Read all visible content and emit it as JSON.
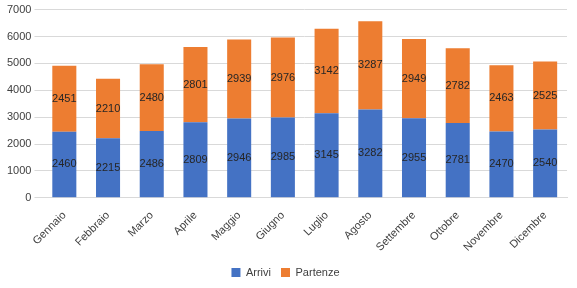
{
  "chart_data": {
    "type": "bar",
    "stacked": true,
    "categories": [
      "Gennaio",
      "Febbraio",
      "Marzo",
      "Aprile",
      "Maggio",
      "Giugno",
      "Luglio",
      "Agosto",
      "Settembre",
      "Ottobre",
      "Novembre",
      "Dicembre"
    ],
    "series": [
      {
        "name": "Arrivi",
        "color": "#4472c4",
        "values": [
          2460,
          2215,
          2486,
          2809,
          2946,
          2985,
          3145,
          3282,
          2955,
          2781,
          2470,
          2540
        ]
      },
      {
        "name": "Partenze",
        "color": "#ed7d31",
        "values": [
          2451,
          2210,
          2480,
          2801,
          2939,
          2976,
          3142,
          3287,
          2949,
          2782,
          2463,
          2525
        ]
      }
    ],
    "ylim": [
      0,
      7000
    ],
    "yticks": [
      0,
      1000,
      2000,
      3000,
      4000,
      5000,
      6000,
      7000
    ],
    "grid": true,
    "legend": "bottom",
    "data_labels": true
  }
}
